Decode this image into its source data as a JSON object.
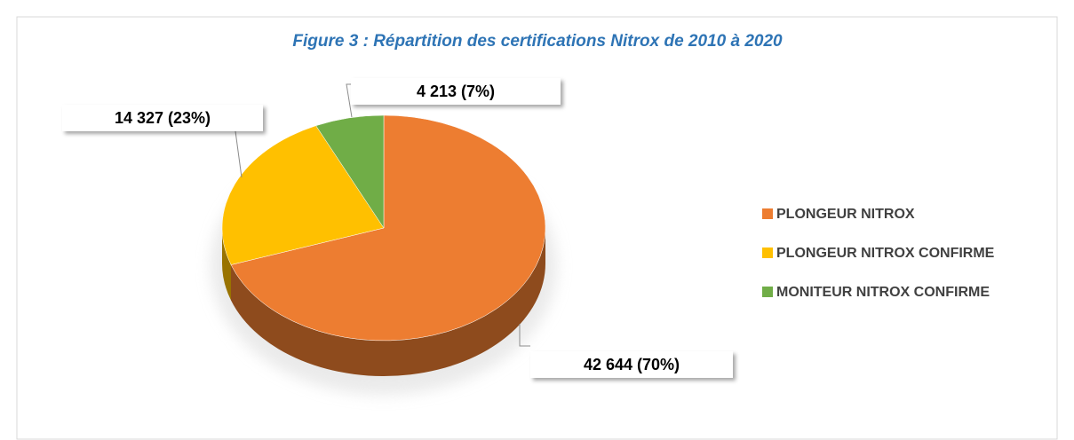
{
  "chart_data": {
    "type": "pie",
    "title": "Figure 3 : Répartition des certifications Nitrox de 2010 à 2020",
    "categories": [
      "PLONGEUR NITROX",
      "PLONGEUR NITROX CONFIRME",
      "MONITEUR NITROX CONFIRME"
    ],
    "values": [
      42644,
      14327,
      4213
    ],
    "value_labels": [
      "42 644 (70%)",
      "14 327 (23%)",
      "4 213 (7%)"
    ],
    "colors": [
      "#ED7D31",
      "#FFC000",
      "#70AD47"
    ],
    "legend": "right"
  }
}
